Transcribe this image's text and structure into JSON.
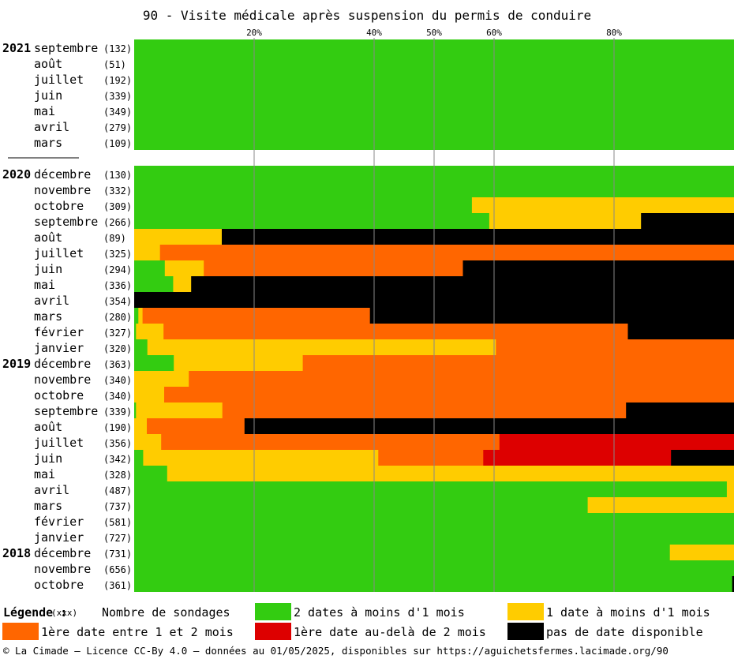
{
  "colors": {
    "green": "#33cc11",
    "yellow": "#ffcc00",
    "orange": "#ff6600",
    "red": "#dd0000",
    "black": "#000000",
    "grid": "#888888"
  },
  "chart_data": {
    "type": "bar",
    "stacked": true,
    "orientation": "horizontal",
    "title": "90 - Visite médicale après suspension du permis de conduire",
    "xlim": [
      0,
      100
    ],
    "x_ticks": [
      {
        "value": 20,
        "label": "20%"
      },
      {
        "value": 40,
        "label": "40%"
      },
      {
        "value": 50,
        "label": "50%"
      },
      {
        "value": 60,
        "label": "60%"
      },
      {
        "value": 80,
        "label": "80%"
      }
    ],
    "grid": "vertical lines at ticks",
    "series": [
      {
        "name": "2 dates à moins d'1 mois",
        "color_key": "green"
      },
      {
        "name": "1 date à moins d'1 mois",
        "color_key": "yellow"
      },
      {
        "name": "1ère date entre 1 et 2 mois",
        "color_key": "orange"
      },
      {
        "name": "1ère date au-delà de 2 mois",
        "color_key": "red"
      },
      {
        "name": "pas de date disponible",
        "color_key": "black"
      }
    ],
    "groups": [
      {
        "year": "2021",
        "rows": [
          {
            "month": "septembre",
            "count": "(132)",
            "values": [
              100,
              0,
              0,
              0,
              0
            ]
          },
          {
            "month": "août",
            "count": "(51)",
            "values": [
              100,
              0,
              0,
              0,
              0
            ]
          },
          {
            "month": "juillet",
            "count": "(192)",
            "values": [
              100,
              0,
              0,
              0,
              0
            ]
          },
          {
            "month": "juin",
            "count": "(339)",
            "values": [
              100,
              0,
              0,
              0,
              0
            ]
          },
          {
            "month": "mai",
            "count": "(349)",
            "values": [
              100,
              0,
              0,
              0,
              0
            ]
          },
          {
            "month": "avril",
            "count": "(279)",
            "values": [
              100,
              0,
              0,
              0,
              0
            ]
          },
          {
            "month": "mars",
            "count": "(109)",
            "values": [
              100,
              0,
              0,
              0,
              0
            ]
          }
        ]
      },
      {
        "year": "2020",
        "rows": [
          {
            "month": "décembre",
            "count": "(130)",
            "values": [
              100,
              0,
              0,
              0,
              0
            ]
          },
          {
            "month": "novembre",
            "count": "(332)",
            "values": [
              100,
              0,
              0,
              0,
              0
            ]
          },
          {
            "month": "octobre",
            "count": "(309)",
            "values": [
              56.3,
              43.7,
              0,
              0,
              0
            ]
          },
          {
            "month": "septembre",
            "count": "(266)",
            "values": [
              59.2,
              25.3,
              0,
              0,
              15.5
            ]
          },
          {
            "month": "août",
            "count": "(89)",
            "values": [
              0,
              14.6,
              0,
              0,
              85.4
            ]
          },
          {
            "month": "juillet",
            "count": "(325)",
            "values": [
              0,
              4.3,
              95.7,
              0,
              0
            ]
          },
          {
            "month": "juin",
            "count": "(294)",
            "values": [
              5.1,
              6.5,
              43.2,
              0,
              45.2
            ]
          },
          {
            "month": "mai",
            "count": "(336)",
            "values": [
              6.5,
              3.0,
              0,
              0,
              90.5
            ]
          },
          {
            "month": "avril",
            "count": "(354)",
            "values": [
              0,
              0,
              0,
              0,
              100
            ]
          },
          {
            "month": "mars",
            "count": "(280)",
            "values": [
              0.7,
              0.7,
              37.9,
              0,
              60.7
            ]
          },
          {
            "month": "février",
            "count": "(327)",
            "values": [
              0.3,
              4.6,
              77.4,
              0,
              17.7
            ]
          },
          {
            "month": "janvier",
            "count": "(320)",
            "values": [
              2.2,
              58.1,
              39.7,
              0,
              0
            ]
          }
        ]
      },
      {
        "year": "2019",
        "rows": [
          {
            "month": "décembre",
            "count": "(363)",
            "values": [
              6.6,
              21.5,
              71.9,
              0,
              0
            ]
          },
          {
            "month": "novembre",
            "count": "(340)",
            "values": [
              0,
              9.1,
              90.9,
              0,
              0
            ]
          },
          {
            "month": "octobre",
            "count": "(340)",
            "values": [
              0,
              5.0,
              95.0,
              0,
              0
            ]
          },
          {
            "month": "septembre",
            "count": "(339)",
            "values": [
              0.3,
              14.4,
              67.3,
              0,
              18.0
            ]
          },
          {
            "month": "août",
            "count": "(190)",
            "values": [
              0,
              2.1,
              16.3,
              0,
              81.6
            ]
          },
          {
            "month": "juillet",
            "count": "(356)",
            "values": [
              0,
              4.5,
              56.4,
              39.1,
              0
            ]
          },
          {
            "month": "juin",
            "count": "(342)",
            "values": [
              1.5,
              39.2,
              17.5,
              31.3,
              10.5
            ]
          },
          {
            "month": "mai",
            "count": "(328)",
            "values": [
              5.5,
              94.5,
              0,
              0,
              0
            ]
          },
          {
            "month": "avril",
            "count": "(487)",
            "values": [
              98.8,
              1.2,
              0,
              0,
              0
            ]
          },
          {
            "month": "mars",
            "count": "(737)",
            "values": [
              75.6,
              24.4,
              0,
              0,
              0
            ]
          },
          {
            "month": "février",
            "count": "(581)",
            "values": [
              100,
              0,
              0,
              0,
              0
            ]
          },
          {
            "month": "janvier",
            "count": "(727)",
            "values": [
              100,
              0,
              0,
              0,
              0
            ]
          }
        ]
      },
      {
        "year": "2018",
        "rows": [
          {
            "month": "décembre",
            "count": "(731)",
            "values": [
              89.3,
              10.7,
              0,
              0,
              0
            ]
          },
          {
            "month": "novembre",
            "count": "(656)",
            "values": [
              100,
              0,
              0,
              0,
              0
            ]
          },
          {
            "month": "octobre",
            "count": "(361)",
            "values": [
              99.7,
              0,
              0,
              0,
              0.3
            ]
          }
        ]
      }
    ]
  },
  "legend": {
    "title": "Légende :",
    "count_marker": "(xxx)",
    "count_label": "Nombre de sondages",
    "items": [
      {
        "label": "2 dates à moins d'1 mois",
        "color": "#33cc11"
      },
      {
        "label": "1 date à moins d'1 mois",
        "color": "#ffcc00"
      },
      {
        "label": "1ère date entre 1 et 2 mois",
        "color": "#ff6600"
      },
      {
        "label": "1ère date au-delà de 2 mois",
        "color": "#dd0000"
      },
      {
        "label": "pas de date disponible",
        "color": "#000000"
      }
    ]
  },
  "footer": "© La Cimade — Licence CC-By 4.0 — données au 01/05/2025, disponibles sur https://aguichetsfermes.lacimade.org/90"
}
